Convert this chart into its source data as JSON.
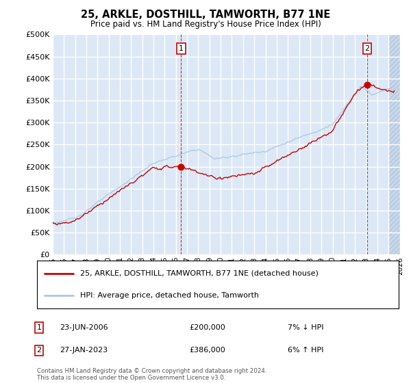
{
  "title": "25, ARKLE, DOSTHILL, TAMWORTH, B77 1NE",
  "subtitle": "Price paid vs. HM Land Registry's House Price Index (HPI)",
  "ytick_values": [
    0,
    50000,
    100000,
    150000,
    200000,
    250000,
    300000,
    350000,
    400000,
    450000,
    500000
  ],
  "ylim": [
    0,
    500000
  ],
  "xlim_left": 1995.0,
  "xlim_right": 2026.0,
  "xtick_years": [
    1995,
    1996,
    1997,
    1998,
    1999,
    2000,
    2001,
    2002,
    2003,
    2004,
    2005,
    2006,
    2007,
    2008,
    2009,
    2010,
    2011,
    2012,
    2013,
    2014,
    2015,
    2016,
    2017,
    2018,
    2019,
    2020,
    2021,
    2022,
    2023,
    2024,
    2025,
    2026
  ],
  "hpi_color": "#a8c8e8",
  "price_color": "#cc0000",
  "ann1_x": 2006.47,
  "ann1_y": 200000,
  "ann2_x": 2023.07,
  "ann2_y": 386000,
  "legend_label1": "25, ARKLE, DOSTHILL, TAMWORTH, B77 1NE (detached house)",
  "legend_label2": "HPI: Average price, detached house, Tamworth",
  "annotation1_date": "23-JUN-2006",
  "annotation1_price": "£200,000",
  "annotation1_hpi": "7% ↓ HPI",
  "annotation2_date": "27-JAN-2023",
  "annotation2_price": "£386,000",
  "annotation2_hpi": "6% ↑ HPI",
  "footer": "Contains HM Land Registry data © Crown copyright and database right 2024.\nThis data is licensed under the Open Government Licence v3.0.",
  "background_color": "#dce8f5",
  "hatch_color": "#c8d8e8",
  "grid_color": "#ffffff"
}
